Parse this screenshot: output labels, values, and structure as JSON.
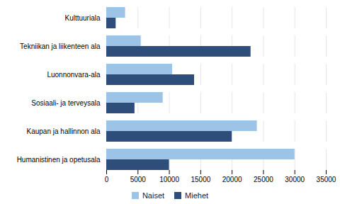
{
  "chart_data": {
    "type": "bar",
    "orientation": "horizontal",
    "categories": [
      "Humanistinen ja opetusala",
      "Kaupan ja hallinnon ala",
      "Sosiaali- ja terveysala",
      "Luonnonvara-ala",
      "Tekniikan ja liikenteen ala",
      "Kulttuuriala"
    ],
    "series": [
      {
        "name": "Naiset",
        "color": "#9DC3E6",
        "values": [
          30000,
          24000,
          9000,
          10500,
          5500,
          3000
        ]
      },
      {
        "name": "Miehet",
        "color": "#2E4D7B",
        "values": [
          10000,
          20000,
          4500,
          14000,
          23000,
          1500
        ]
      }
    ],
    "xlim": [
      0,
      35000
    ],
    "xticks": [
      0,
      5000,
      10000,
      15000,
      20000,
      25000,
      30000,
      35000
    ],
    "grid": true,
    "legend": "bottom"
  }
}
